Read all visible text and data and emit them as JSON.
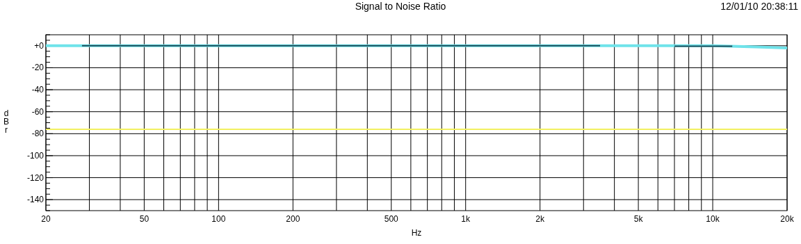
{
  "chart_data": {
    "type": "line",
    "title": "Signal to Noise Ratio",
    "annotations": [
      "12/01/10 20:38:11"
    ],
    "xlabel": "Hz",
    "ylabel": "dBr",
    "log": "x",
    "xlim": [
      20,
      20000
    ],
    "ylim": [
      -150,
      10
    ],
    "xticks": [
      20,
      {
        "value": 30,
        "label": null
      },
      {
        "value": 40,
        "label": null
      },
      50,
      {
        "value": 60,
        "label": null
      },
      {
        "value": 70,
        "label": null
      },
      {
        "value": 80,
        "label": null
      },
      {
        "value": 90,
        "label": null
      },
      100,
      200,
      {
        "value": 300,
        "label": null
      },
      {
        "value": 400,
        "label": null
      },
      500,
      {
        "value": 600,
        "label": null
      },
      {
        "value": 700,
        "label": null
      },
      {
        "value": 800,
        "label": null
      },
      {
        "value": 900,
        "label": null
      },
      {
        "value": 1000,
        "label": "1k"
      },
      {
        "value": 2000,
        "label": "2k"
      },
      {
        "value": 3000,
        "label": null
      },
      {
        "value": 4000,
        "label": null
      },
      {
        "value": 5000,
        "label": "5k"
      },
      {
        "value": 6000,
        "label": null
      },
      {
        "value": 7000,
        "label": null
      },
      {
        "value": 8000,
        "label": null
      },
      {
        "value": 9000,
        "label": null
      },
      {
        "value": 10000,
        "label": "10k"
      },
      {
        "value": 20000,
        "label": "20k"
      }
    ],
    "yticks": [
      {
        "value": 10,
        "label": null
      },
      {
        "value": 5,
        "label": null
      },
      {
        "value": 0,
        "label": "+0"
      },
      {
        "value": -5,
        "label": null
      },
      {
        "value": -10,
        "label": null
      },
      {
        "value": -15,
        "label": null
      },
      -20,
      {
        "value": -25,
        "label": null
      },
      {
        "value": -30,
        "label": null
      },
      {
        "value": -35,
        "label": null
      },
      -40,
      {
        "value": -45,
        "label": null
      },
      {
        "value": -50,
        "label": null
      },
      {
        "value": -55,
        "label": null
      },
      -60,
      {
        "value": -65,
        "label": null
      },
      {
        "value": -70,
        "label": null
      },
      {
        "value": -75,
        "label": null
      },
      -80,
      {
        "value": -85,
        "label": null
      },
      {
        "value": -90,
        "label": null
      },
      {
        "value": -95,
        "label": null
      },
      -100,
      {
        "value": -105,
        "label": null
      },
      {
        "value": -110,
        "label": null
      },
      {
        "value": -115,
        "label": null
      },
      -120,
      {
        "value": -125,
        "label": null
      },
      {
        "value": -130,
        "label": null
      },
      {
        "value": -135,
        "label": null
      },
      -140,
      {
        "value": -145,
        "label": null
      },
      {
        "value": -150,
        "label": null
      }
    ],
    "grid": true,
    "series": [
      {
        "color": "#6fe3ea",
        "x": [
          20,
          10000,
          15000,
          20000
        ],
        "values": [
          0,
          0,
          -1,
          -2
        ]
      },
      {
        "color": "#1d4f5c",
        "x": [
          28,
          3500
        ],
        "values": [
          0,
          0
        ]
      },
      {
        "color": "#1d4f5c",
        "x": [
          7000,
          12000
        ],
        "values": [
          -0.5,
          -0.5
        ]
      },
      {
        "color": "#f2f060",
        "x": [
          20,
          20000
        ],
        "values": [
          -76,
          -76
        ]
      }
    ]
  }
}
